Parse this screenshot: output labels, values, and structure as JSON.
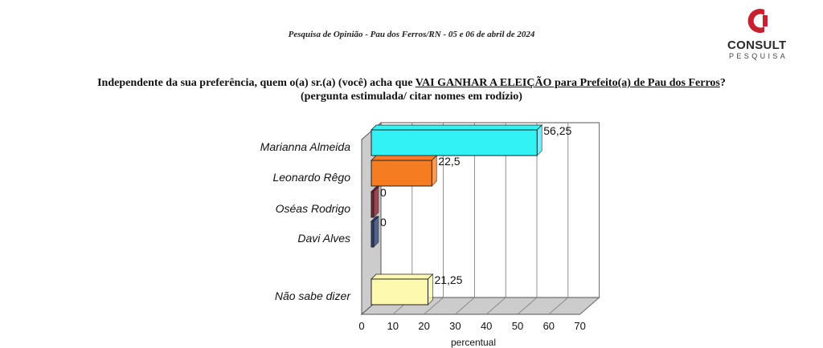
{
  "header": {
    "subtitle": "Pesquisa de Opinião  -  Pau dos Ferros/RN  -  05 e 06 de abril de 2024"
  },
  "logo": {
    "name": "CONSULT",
    "sub": "PESQUISA",
    "color": "#c8202e"
  },
  "question": {
    "line1_pre": "Independente da sua preferência, quem o(a) sr.(a) (você) acha que ",
    "line1_underlined": "VAI GANHAR A ELEIÇÃO para Prefeito(a) de Pau dos Ferros",
    "line1_post": "?",
    "line2": "(pergunta estimulada/ citar nomes em rodízio)"
  },
  "chart_data": {
    "type": "bar",
    "orientation": "horizontal",
    "categories": [
      "Marianna Almeida",
      "Leonardo Rêgo",
      "Oséas Rodrigo",
      "Davi Alves",
      "Não sabe dizer"
    ],
    "values": [
      56.25,
      22.5,
      0,
      0,
      21.25
    ],
    "value_labels": [
      "56,25",
      "22,5",
      "0",
      "0",
      "21,25"
    ],
    "colors": [
      "#33f2f6",
      "#f57c20",
      "#8a1a2a",
      "#2a3f7a",
      "#fdfab0"
    ],
    "xlabel": "percentual",
    "xlim": [
      0,
      70
    ],
    "xticks": [
      0,
      10,
      20,
      30,
      40,
      50,
      60,
      70
    ],
    "grid": true
  }
}
